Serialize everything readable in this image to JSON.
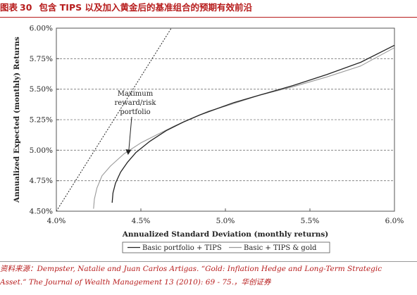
{
  "header": {
    "figure_label": "图表",
    "figure_number": "30",
    "title": "包含 TIPS 以及加入黄金后的基准组合的预期有效前沿"
  },
  "source": {
    "line1": "资料来源：Dempster, Natalie and Juan Carlos Artigas. “Gold: Inflation Hedge and Long-Term Strategic",
    "line2": "Asset.” The Journal of Wealth Management 13 (2010): 69 - 75.，华创证券"
  },
  "chart_data": {
    "type": "line",
    "xlabel": "Annualized Standard Deviation (monthly returns)",
    "ylabel": "Annualized Expected (monthly) Returns",
    "xlim": [
      4.0,
      6.0
    ],
    "ylim": [
      4.5,
      6.0
    ],
    "x_ticks": [
      4.0,
      4.5,
      5.0,
      5.5,
      6.0
    ],
    "x_tick_labels": [
      "4.0%",
      "4.5%",
      "5.0%",
      "5.5%",
      "6.0%"
    ],
    "y_ticks": [
      4.5,
      4.75,
      5.0,
      5.25,
      5.5,
      5.75,
      6.0
    ],
    "y_tick_labels": [
      "4.50%",
      "4.75%",
      "5.00%",
      "5.25%",
      "5.50%",
      "5.75%",
      "6.00%"
    ],
    "grid": "horizontal dashed",
    "legend_position": "bottom",
    "series": [
      {
        "name": "Basic portfolio + TIPS",
        "color": "#222222",
        "x": [
          4.33,
          4.335,
          4.35,
          4.38,
          4.42,
          4.47,
          4.55,
          4.65,
          4.75,
          4.85,
          4.95,
          5.05,
          5.2,
          5.4,
          5.6,
          5.8,
          6.0
        ],
        "y": [
          4.57,
          4.65,
          4.73,
          4.82,
          4.9,
          4.98,
          5.07,
          5.16,
          5.23,
          5.29,
          5.34,
          5.39,
          5.45,
          5.53,
          5.62,
          5.72,
          5.86
        ]
      },
      {
        "name": "Basic + TIPS & gold",
        "color": "#999999",
        "x": [
          4.22,
          4.225,
          4.24,
          4.27,
          4.32,
          4.4,
          4.5,
          4.6,
          4.7,
          4.8,
          4.9,
          5.0,
          5.2,
          5.4,
          5.6,
          5.8,
          6.0
        ],
        "y": [
          4.52,
          4.6,
          4.69,
          4.79,
          4.87,
          4.97,
          5.06,
          5.13,
          5.2,
          5.26,
          5.32,
          5.36,
          5.45,
          5.52,
          5.6,
          5.69,
          5.84
        ]
      }
    ],
    "capital_market_line": {
      "style": "dotted",
      "x": [
        4.0,
        4.68
      ],
      "y": [
        4.5,
        6.0
      ]
    },
    "annotation": {
      "lines": [
        "Maximum",
        "reward/risk",
        "portfolio"
      ],
      "point": [
        4.42,
        4.95
      ]
    }
  }
}
